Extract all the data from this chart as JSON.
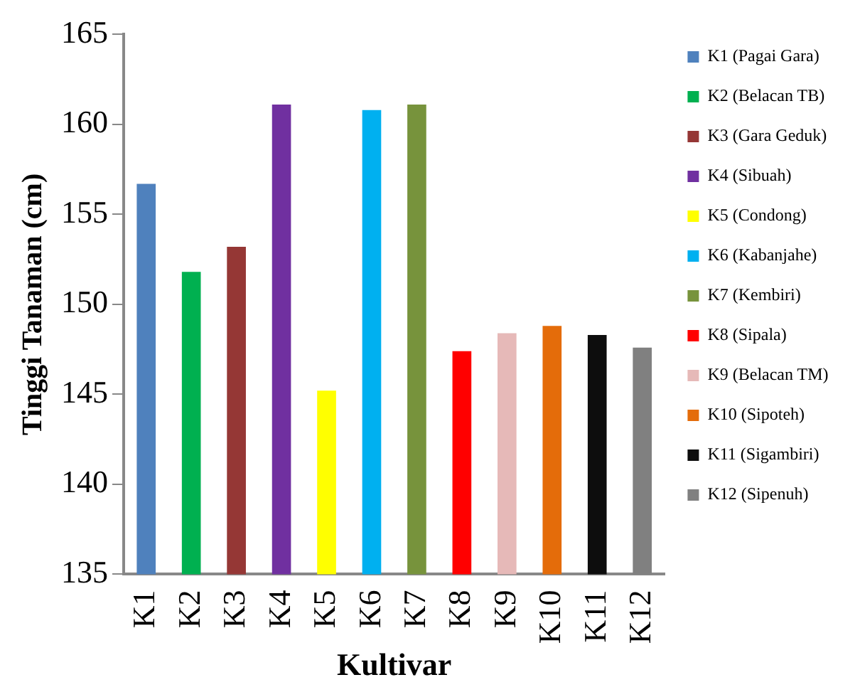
{
  "chart_data": {
    "type": "bar",
    "xlabel": "Kultivar",
    "ylabel": "Tinggi Tanaman (cm)",
    "categories": [
      "K1",
      "K2",
      "K3",
      "K4",
      "K5",
      "K6",
      "K7",
      "K8",
      "K9",
      "K10",
      "K11",
      "K12"
    ],
    "series": [
      {
        "name": "K1 (Pagai Gara)",
        "color": "#4f81bd",
        "values": [
          156.7,
          null,
          null,
          null,
          null,
          null,
          null,
          null,
          null,
          null,
          null,
          null
        ]
      },
      {
        "name": "K2 (Belacan TB)",
        "color": "#00b050",
        "values": [
          null,
          151.8,
          null,
          null,
          null,
          null,
          null,
          null,
          null,
          null,
          null,
          null
        ]
      },
      {
        "name": "K3 (Gara Geduk)",
        "color": "#953735",
        "values": [
          null,
          null,
          153.2,
          null,
          null,
          null,
          null,
          null,
          null,
          null,
          null,
          null
        ]
      },
      {
        "name": "K4 (Sibuah)",
        "color": "#7030a0",
        "values": [
          null,
          null,
          null,
          161.1,
          null,
          null,
          null,
          null,
          null,
          null,
          null,
          null
        ]
      },
      {
        "name": "K5 (Condong)",
        "color": "#ffff00",
        "values": [
          null,
          null,
          null,
          null,
          145.2,
          null,
          null,
          null,
          null,
          null,
          null,
          null
        ]
      },
      {
        "name": "K6 (Kabanjahe)",
        "color": "#00b0f0",
        "values": [
          null,
          null,
          null,
          null,
          null,
          160.8,
          null,
          null,
          null,
          null,
          null,
          null
        ]
      },
      {
        "name": "K7 (Kembiri)",
        "color": "#77933c",
        "values": [
          null,
          null,
          null,
          null,
          null,
          null,
          161.1,
          null,
          null,
          null,
          null,
          null
        ]
      },
      {
        "name": "K8 (Sipala)",
        "color": "#ff0000",
        "values": [
          null,
          null,
          null,
          null,
          null,
          null,
          null,
          147.4,
          null,
          null,
          null,
          null
        ]
      },
      {
        "name": "K9 (Belacan TM)",
        "color": "#e6b9b8",
        "values": [
          null,
          null,
          null,
          null,
          null,
          null,
          null,
          null,
          148.4,
          null,
          null,
          null
        ]
      },
      {
        "name": "K10 (Sipoteh)",
        "color": "#e46c0a",
        "values": [
          null,
          null,
          null,
          null,
          null,
          null,
          null,
          null,
          null,
          148.8,
          null,
          null
        ]
      },
      {
        "name": "K11 (Sigambiri)",
        "color": "#0d0d0d",
        "values": [
          null,
          null,
          null,
          null,
          null,
          null,
          null,
          null,
          null,
          null,
          148.3,
          null
        ]
      },
      {
        "name": "K12 (Sipenuh)",
        "color": "#808080",
        "values": [
          null,
          null,
          null,
          null,
          null,
          null,
          null,
          null,
          null,
          null,
          null,
          147.6
        ]
      }
    ],
    "ylim": [
      135,
      165
    ],
    "yticks": [
      135,
      140,
      145,
      150,
      155,
      160,
      165
    ],
    "grid": false,
    "legend": "right"
  }
}
